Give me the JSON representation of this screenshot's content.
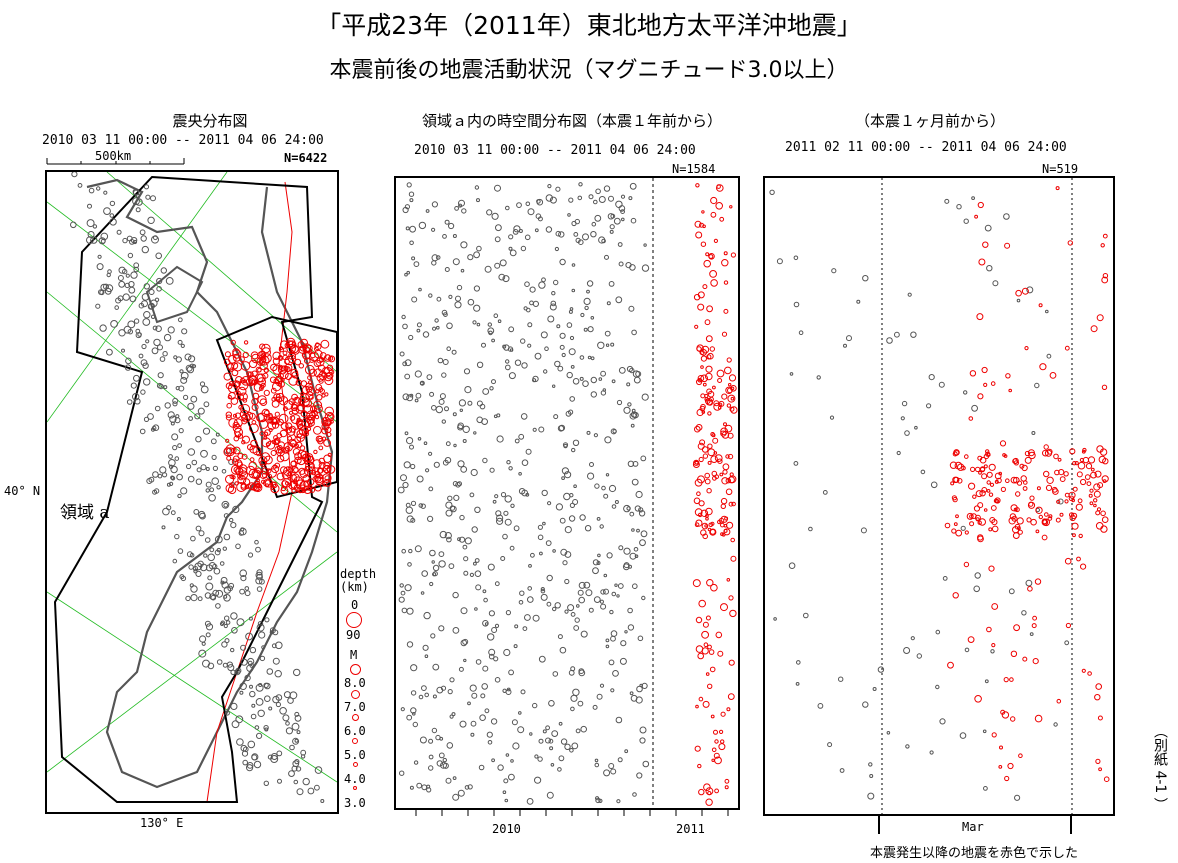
{
  "title": "「平成23年（2011年）東北地方太平洋沖地震」",
  "subtitle": "本震前後の地震活動状況（マグニチュード3.0以上）",
  "panels": {
    "map": {
      "title": "震央分布図",
      "range": "2010 03 11 00:00 -- 2011 04 06 24:00",
      "scale": "500km",
      "count": "N=6422",
      "lat_label": "40° N",
      "lon_label": "130° E",
      "region_label": "領域 a"
    },
    "spacetime_year": {
      "title": "領域ａ内の時空間分布図（本震１年前から）",
      "range": "2010 03 11 00:00 -- 2011 04 06 24:00",
      "count": "N=1584",
      "x_ticks": [
        "2010",
        "2011"
      ]
    },
    "spacetime_month": {
      "title": "（本震１ヶ月前から）",
      "range": "2011 02 11 00:00 -- 2011 04 06 24:00",
      "count": "N=519",
      "x_ticks": [
        "Mar"
      ]
    }
  },
  "legend": {
    "depth_title": "depth\n(km)",
    "depth_values": [
      "0",
      "90"
    ],
    "mag_title": "M",
    "mag_values": [
      "8.0",
      "7.0",
      "6.0",
      "5.0",
      "4.0",
      "3.0"
    ]
  },
  "footnote": "本震発生以降の地震を赤色で示した",
  "side_label": "（別紙 4-1 ）",
  "colors": {
    "before": "#555555",
    "after": "#ee0000",
    "coast": "#555555",
    "boundary": "#22bb22"
  }
}
